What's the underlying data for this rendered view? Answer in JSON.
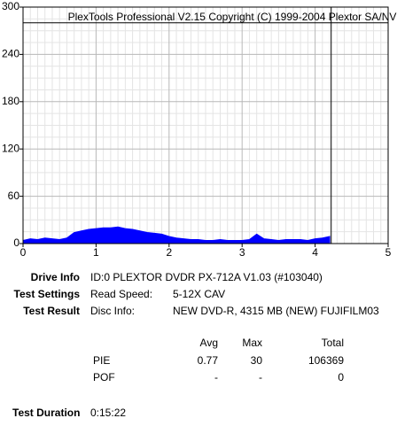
{
  "chart_data": {
    "type": "area",
    "watermark": "PlexTools Professional V2.15 Copyright (C) 1999-2004 Plextor SA/NV",
    "x": [
      0,
      0.1,
      0.2,
      0.3,
      0.4,
      0.5,
      0.6,
      0.7,
      0.8,
      0.9,
      1.0,
      1.1,
      1.2,
      1.3,
      1.4,
      1.5,
      1.6,
      1.7,
      1.8,
      1.9,
      2.0,
      2.1,
      2.2,
      2.3,
      2.4,
      2.5,
      2.6,
      2.7,
      2.8,
      2.9,
      3.0,
      3.1,
      3.2,
      3.3,
      3.4,
      3.5,
      3.6,
      3.7,
      3.8,
      3.9,
      4.0,
      4.1,
      4.2
    ],
    "values": [
      4,
      6,
      5,
      7,
      6,
      5,
      7,
      14,
      16,
      18,
      19,
      20,
      20,
      21,
      19,
      18,
      16,
      14,
      13,
      12,
      9,
      7,
      6,
      5,
      5,
      4,
      4,
      5,
      4,
      4,
      4,
      5,
      12,
      6,
      5,
      4,
      5,
      5,
      5,
      4,
      6,
      7,
      9
    ],
    "color": "#0000ff",
    "xlim": [
      0,
      5
    ],
    "ylim": [
      0,
      300
    ],
    "xticks": [
      0,
      1,
      2,
      3,
      4,
      5
    ],
    "yticks": [
      0,
      60,
      120,
      180,
      240,
      300
    ],
    "grid": true,
    "hline": 280,
    "vline": 4.22
  },
  "info": {
    "drive_label": "Drive Info",
    "drive_value": "ID:0 PLEXTOR DVDR PX-712A V1.03 (#103040)",
    "settings_label": "Test Settings",
    "speed_label": "Read Speed:",
    "speed_value": "5-12X CAV",
    "result_label": "Test Result",
    "disc_label": "Disc Info:",
    "disc_value": "NEW DVD-R, 4315 MB (NEW) FUJIFILM03",
    "duration_label": "Test Duration",
    "duration_value": "0:15:22"
  },
  "stats": {
    "header": [
      "Avg",
      "Max",
      "Total"
    ],
    "rows": [
      [
        "PIE",
        "0.77",
        "30",
        "106369"
      ],
      [
        "POF",
        "-",
        "-",
        "0"
      ]
    ]
  }
}
